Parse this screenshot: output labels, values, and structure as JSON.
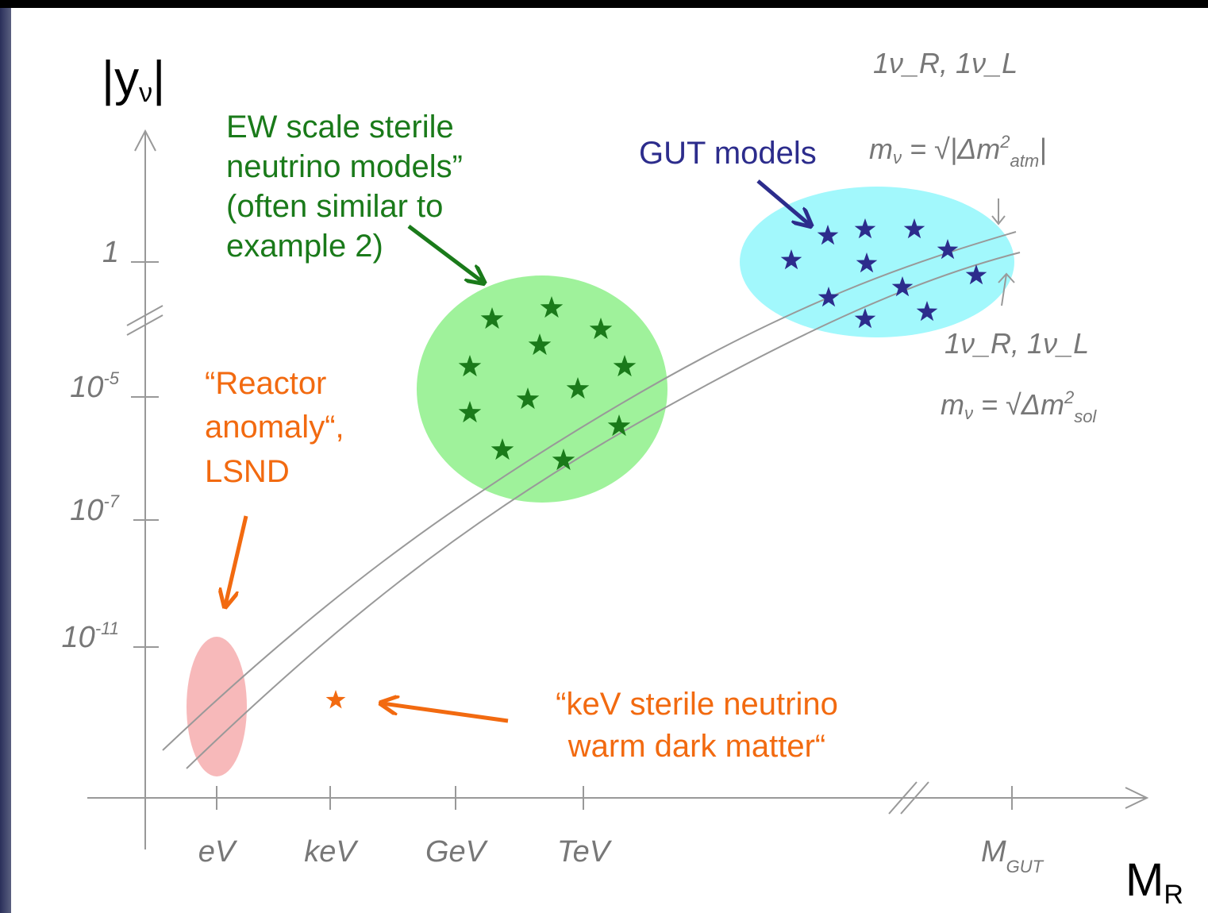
{
  "axes": {
    "y_label": {
      "bar_open": "|",
      "base": "y",
      "sub": "ν",
      "bar_close": "|"
    },
    "x_label": {
      "base": "M",
      "sub": "R"
    },
    "x_ticks": [
      {
        "base": "eV"
      },
      {
        "base": "keV"
      },
      {
        "base": "GeV"
      },
      {
        "base": "TeV"
      },
      {
        "base": "M",
        "sub": "GUT"
      }
    ],
    "y_ticks": [
      {
        "base": "1"
      },
      {
        "base": "10",
        "exp": "-5"
      },
      {
        "base": "10",
        "exp": "-7"
      },
      {
        "base": "10",
        "exp": "-11"
      }
    ]
  },
  "annotations": {
    "ew": [
      "EW scale sterile",
      "neutrino models”",
      "(often similar to",
      "example 2)"
    ],
    "gut": "GUT models",
    "reactor": [
      "“Reactor",
      "anomaly“,",
      "LSND"
    ],
    "kev": [
      "“keV sterile neutrino",
      "warm dark matter“"
    ]
  },
  "handwritten": {
    "upper_counts": "1ν_R, 1ν_L",
    "upper_mass": {
      "lhs": "m",
      "lhs_sub": "ν",
      "eq": " = √|Δm",
      "sup": "2",
      "sub": "atm",
      "end": "|"
    },
    "lower_counts": "1ν_R, 1ν_L",
    "lower_mass": {
      "lhs": "m",
      "lhs_sub": "ν",
      "eq": " = √Δm",
      "sup": "2",
      "sub": "sol"
    }
  }
}
